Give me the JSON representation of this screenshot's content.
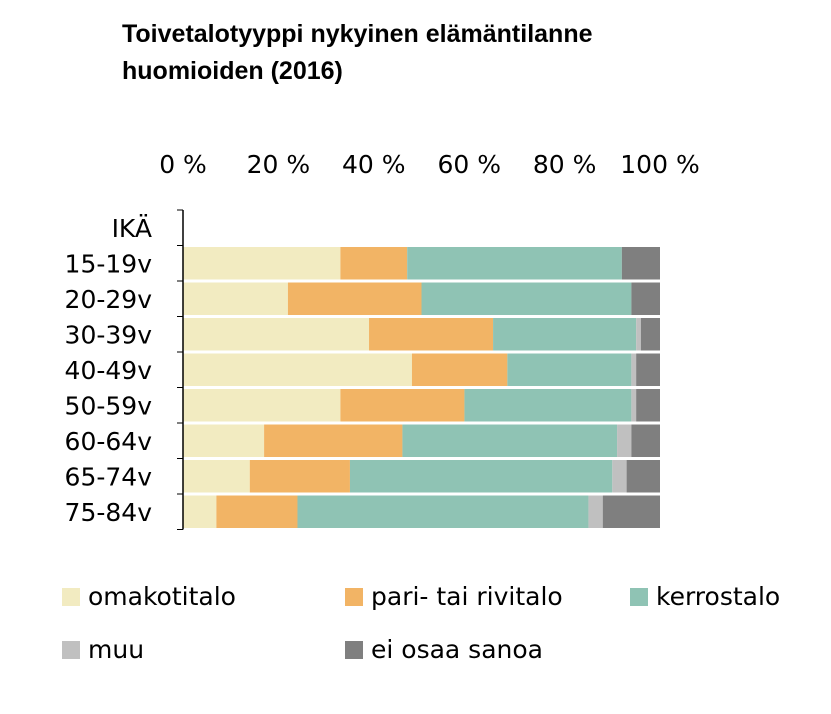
{
  "chart_data": {
    "type": "stacked-bar-horizontal",
    "title": [
      "Toivetalotyyppi nykyinen elämäntilanne",
      "huomioiden (2016)"
    ],
    "y_label": "IKÄ",
    "categories": [
      "15-19v",
      "20-29v",
      "30-39v",
      "40-49v",
      "50-59v",
      "60-64v",
      "65-74v",
      "75-84v"
    ],
    "series": [
      {
        "name": "omakotitalo",
        "color": "#f2ebc1",
        "values": [
          33,
          22,
          39,
          48,
          33,
          17,
          14,
          7
        ]
      },
      {
        "name": "pari- tai rivitalo",
        "color": "#f2b465",
        "values": [
          14,
          28,
          26,
          20,
          26,
          29,
          21,
          17
        ]
      },
      {
        "name": "kerrostalo",
        "color": "#8fc3b4",
        "values": [
          45,
          44,
          30,
          26,
          35,
          45,
          55,
          61
        ]
      },
      {
        "name": "muu",
        "color": "#c0c0c0",
        "values": [
          0,
          0,
          1,
          1,
          1,
          3,
          3,
          3
        ]
      },
      {
        "name": "ei osaa sanoa",
        "color": "#7f7f7f",
        "values": [
          8,
          6,
          4,
          5,
          5,
          6,
          7,
          12
        ]
      }
    ],
    "xlim": [
      0,
      100
    ],
    "xticks": [
      {
        "value": 0,
        "label": "0 %"
      },
      {
        "value": 20,
        "label": "20 %"
      },
      {
        "value": 40,
        "label": "40 %"
      },
      {
        "value": 60,
        "label": "60 %"
      },
      {
        "value": 80,
        "label": "80 %"
      },
      {
        "value": 100,
        "label": "100 %"
      }
    ]
  }
}
